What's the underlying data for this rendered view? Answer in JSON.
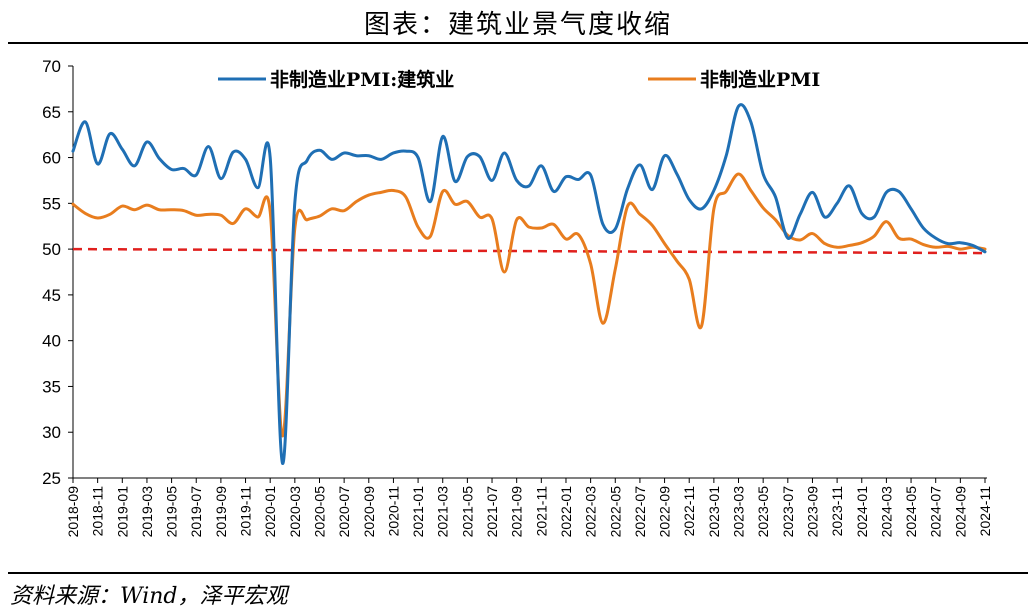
{
  "title": "图表：建筑业景气度收缩",
  "source": "资料来源：Wind，泽平宏观",
  "colors": {
    "construction": "#1F6FB4",
    "nonmanufacturing": "#E87D1E",
    "reference": "#E0201E"
  },
  "chart_data": {
    "type": "line",
    "title": "图表：建筑业景气度收缩",
    "ylim": [
      25,
      70
    ],
    "yticks": [
      25,
      30,
      35,
      40,
      45,
      50,
      55,
      60,
      65,
      70
    ],
    "legend_position": "top",
    "grid": false,
    "x": [
      "2018-09",
      "2018-10",
      "2018-11",
      "2018-12",
      "2019-01",
      "2019-02",
      "2019-03",
      "2019-04",
      "2019-05",
      "2019-06",
      "2019-07",
      "2019-08",
      "2019-09",
      "2019-10",
      "2019-11",
      "2019-12",
      "2020-01",
      "2020-02",
      "2020-03",
      "2020-04",
      "2020-05",
      "2020-06",
      "2020-07",
      "2020-08",
      "2020-09",
      "2020-10",
      "2020-11",
      "2020-12",
      "2021-01",
      "2021-02",
      "2021-03",
      "2021-04",
      "2021-05",
      "2021-06",
      "2021-07",
      "2021-08",
      "2021-09",
      "2021-10",
      "2021-11",
      "2021-12",
      "2022-01",
      "2022-02",
      "2022-03",
      "2022-04",
      "2022-05",
      "2022-06",
      "2022-07",
      "2022-08",
      "2022-09",
      "2022-10",
      "2022-11",
      "2022-12",
      "2023-01",
      "2023-02",
      "2023-03",
      "2023-04",
      "2023-05",
      "2023-06",
      "2023-07",
      "2023-08",
      "2023-09",
      "2023-10",
      "2023-11",
      "2023-12",
      "2024-01",
      "2024-02",
      "2024-03",
      "2024-04",
      "2024-05",
      "2024-06",
      "2024-07",
      "2024-08",
      "2024-09",
      "2024-10",
      "2024-11"
    ],
    "xtick_labels": [
      "2018-09",
      "2018-11",
      "2019-01",
      "2019-03",
      "2019-05",
      "2019-07",
      "2019-09",
      "2019-11",
      "2020-01",
      "2020-03",
      "2020-05",
      "2020-07",
      "2020-09",
      "2020-11",
      "2021-01",
      "2021-03",
      "2021-05",
      "2021-07",
      "2021-09",
      "2021-11",
      "2022-01",
      "2022-03",
      "2022-05",
      "2022-07",
      "2022-09",
      "2022-11",
      "2023-01",
      "2023-03",
      "2023-05",
      "2023-07",
      "2023-09",
      "2023-11",
      "2024-01",
      "2024-03",
      "2024-05",
      "2024-07",
      "2024-09",
      "2024-11"
    ],
    "series": [
      {
        "name": "非制造业PMI:建筑业",
        "color": "#1F6FB4",
        "values": [
          60.7,
          63.9,
          59.3,
          62.6,
          60.9,
          59.1,
          61.7,
          59.9,
          58.7,
          58.8,
          58.1,
          61.2,
          57.7,
          60.6,
          59.8,
          56.7,
          60.0,
          26.6,
          55.1,
          59.7,
          60.8,
          59.8,
          60.5,
          60.2,
          60.2,
          59.8,
          60.5,
          60.7,
          60.0,
          55.2,
          62.3,
          57.4,
          60.1,
          60.1,
          57.5,
          60.5,
          57.5,
          56.9,
          59.1,
          56.3,
          57.9,
          57.6,
          58.1,
          52.7,
          52.2,
          56.6,
          59.2,
          56.5,
          60.2,
          58.2,
          55.4,
          54.4,
          56.4,
          60.2,
          65.6,
          63.9,
          58.2,
          55.7,
          51.2,
          53.8,
          56.2,
          53.5,
          55.0,
          56.9,
          53.9,
          53.5,
          56.2,
          56.3,
          54.4,
          52.3,
          51.2,
          50.6,
          50.7,
          50.4,
          49.7
        ]
      },
      {
        "name": "非制造业PMI",
        "color": "#E87D1E",
        "values": [
          54.9,
          53.9,
          53.4,
          53.8,
          54.7,
          54.3,
          54.8,
          54.3,
          54.3,
          54.2,
          53.7,
          53.8,
          53.7,
          52.8,
          54.4,
          53.5,
          54.1,
          29.6,
          52.3,
          53.2,
          53.6,
          54.4,
          54.2,
          55.2,
          55.9,
          56.2,
          56.4,
          55.7,
          52.4,
          51.4,
          56.3,
          54.9,
          55.2,
          53.5,
          53.3,
          47.5,
          53.2,
          52.4,
          52.3,
          52.7,
          51.1,
          51.6,
          48.4,
          41.9,
          47.8,
          54.7,
          53.8,
          52.6,
          50.6,
          48.7,
          46.7,
          41.6,
          54.4,
          56.3,
          58.2,
          56.4,
          54.5,
          53.2,
          51.5,
          51.0,
          51.7,
          50.6,
          50.2,
          50.4,
          50.7,
          51.4,
          53.0,
          51.2,
          51.1,
          50.5,
          50.2,
          50.3,
          50.0,
          50.2,
          50.0
        ]
      }
    ],
    "reference_line": {
      "value": 50,
      "style": "dashed",
      "color": "#E0201E"
    }
  }
}
